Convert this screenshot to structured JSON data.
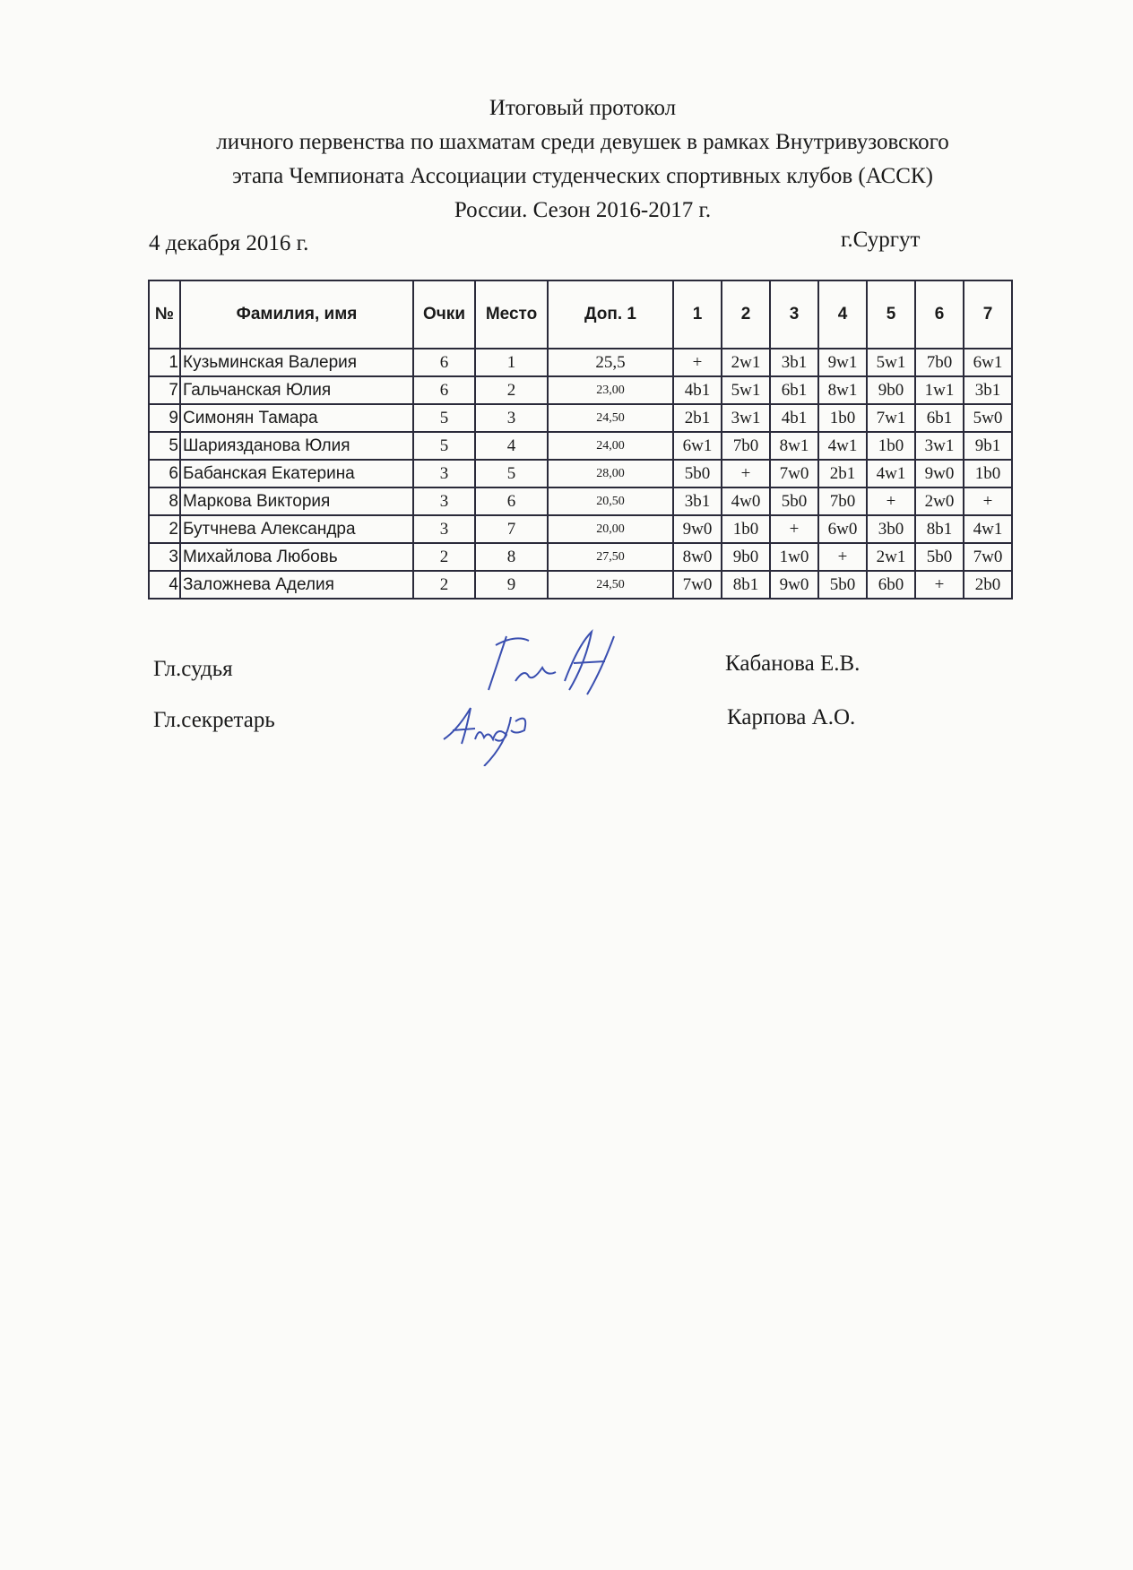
{
  "header": {
    "title_lines": [
      "Итоговый протокол",
      "личного первенства по шахматам среди девушек в рамках Внутривузовского",
      "этапа Чемпионата Ассоциации студенческих спортивных клубов (АССК)",
      "России. Сезон 2016-2017 г."
    ],
    "date": "4 декабря 2016 г.",
    "city": "г.Сургут"
  },
  "table": {
    "columns": [
      "№",
      "Фамилия, имя",
      "Очки",
      "Место",
      "Доп. 1",
      "1",
      "2",
      "3",
      "4",
      "5",
      "6",
      "7"
    ],
    "rows": [
      {
        "num": "1",
        "name": "Кузьминская Валерия",
        "points": "6",
        "place": "1",
        "extra": "25,5",
        "rounds": [
          "+",
          "2w1",
          "3b1",
          "9w1",
          "5w1",
          "7b0",
          "6w1"
        ]
      },
      {
        "num": "7",
        "name": "Гальчанская Юлия",
        "points": "6",
        "place": "2",
        "extra": "23,00",
        "rounds": [
          "4b1",
          "5w1",
          "6b1",
          "8w1",
          "9b0",
          "1w1",
          "3b1"
        ]
      },
      {
        "num": "9",
        "name": "Симонян Тамара",
        "points": "5",
        "place": "3",
        "extra": "24,50",
        "rounds": [
          "2b1",
          "3w1",
          "4b1",
          "1b0",
          "7w1",
          "6b1",
          "5w0"
        ]
      },
      {
        "num": "5",
        "name": "Шариязданова Юлия",
        "points": "5",
        "place": "4",
        "extra": "24,00",
        "rounds": [
          "6w1",
          "7b0",
          "8w1",
          "4w1",
          "1b0",
          "3w1",
          "9b1"
        ]
      },
      {
        "num": "6",
        "name": "Бабанская Екатерина",
        "points": "3",
        "place": "5",
        "extra": "28,00",
        "rounds": [
          "5b0",
          "+",
          "7w0",
          "2b1",
          "4w1",
          "9w0",
          "1b0"
        ]
      },
      {
        "num": "8",
        "name": "Маркова Виктория",
        "points": "3",
        "place": "6",
        "extra": "20,50",
        "rounds": [
          "3b1",
          "4w0",
          "5b0",
          "7b0",
          "+",
          "2w0",
          "+"
        ]
      },
      {
        "num": "2",
        "name": "Бутчнева Александра",
        "points": "3",
        "place": "7",
        "extra": "20,00",
        "rounds": [
          "9w0",
          "1b0",
          "+",
          "6w0",
          "3b0",
          "8b1",
          "4w1"
        ]
      },
      {
        "num": "3",
        "name": "Михайлова Любовь",
        "points": "2",
        "place": "8",
        "extra": "27,50",
        "rounds": [
          "8w0",
          "9b0",
          "1w0",
          "+",
          "2w1",
          "5b0",
          "7w0"
        ]
      },
      {
        "num": "4",
        "name": "Заложнева Аделия",
        "points": "2",
        "place": "9",
        "extra": "24,50",
        "rounds": [
          "7w0",
          "8b1",
          "9w0",
          "5b0",
          "6b0",
          "+",
          "2b0"
        ]
      }
    ]
  },
  "signatures": {
    "judge_label": "Гл.судья",
    "judge_name": "Кабанова Е.В.",
    "secretary_label": "Гл.секретарь",
    "secretary_name": "Карпова А.О.",
    "ink_color": "#3a4fb0"
  }
}
